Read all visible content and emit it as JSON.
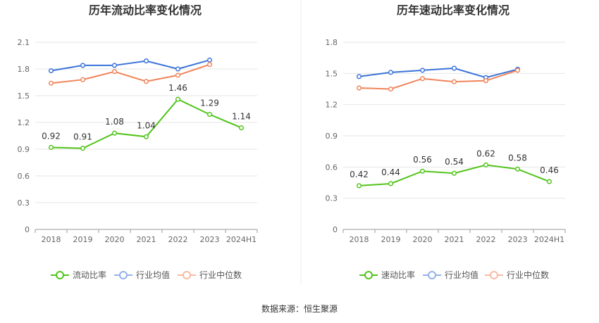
{
  "source_label": "数据来源：恒生聚源",
  "chart_data": [
    {
      "type": "line",
      "title": "历年流动比率变化情况",
      "categories": [
        "2018",
        "2019",
        "2020",
        "2021",
        "2022",
        "2023",
        "2024H1"
      ],
      "ylim": [
        0,
        2.1
      ],
      "yticks": [
        "0",
        "0.3",
        "0.6",
        "0.9",
        "1.2",
        "1.5",
        "1.8",
        "2.1"
      ],
      "grid": true,
      "legend_position": "bottom",
      "series": [
        {
          "name": "流动比率",
          "color": "#52c41a",
          "values": [
            0.92,
            0.91,
            1.08,
            1.04,
            1.46,
            1.29,
            1.14
          ],
          "labels": [
            "0.92",
            "0.91",
            "1.08",
            "1.04",
            "1.46",
            "1.29",
            "1.14"
          ]
        },
        {
          "name": "行业均值",
          "color": "#3b73d9",
          "values": [
            1.78,
            1.84,
            1.84,
            1.89,
            1.8,
            1.9,
            null
          ]
        },
        {
          "name": "行业中位数",
          "color": "#f0845a",
          "values": [
            1.64,
            1.68,
            1.77,
            1.66,
            1.73,
            1.85,
            null
          ]
        }
      ]
    },
    {
      "type": "line",
      "title": "历年速动比率变化情况",
      "categories": [
        "2018",
        "2019",
        "2020",
        "2021",
        "2022",
        "2023",
        "2024H1"
      ],
      "ylim": [
        0,
        1.8
      ],
      "yticks": [
        "0",
        "0.3",
        "0.6",
        "0.9",
        "1.2",
        "1.5",
        "1.8"
      ],
      "grid": true,
      "legend_position": "bottom",
      "series": [
        {
          "name": "速动比率",
          "color": "#52c41a",
          "values": [
            0.42,
            0.44,
            0.56,
            0.54,
            0.62,
            0.58,
            0.46
          ],
          "labels": [
            "0.42",
            "0.44",
            "0.56",
            "0.54",
            "0.62",
            "0.58",
            "0.46"
          ]
        },
        {
          "name": "行业均值",
          "color": "#3b73d9",
          "values": [
            1.47,
            1.51,
            1.53,
            1.55,
            1.46,
            1.54,
            null
          ]
        },
        {
          "name": "行业中位数",
          "color": "#f0845a",
          "values": [
            1.36,
            1.35,
            1.45,
            1.42,
            1.43,
            1.53,
            null
          ]
        }
      ]
    }
  ]
}
